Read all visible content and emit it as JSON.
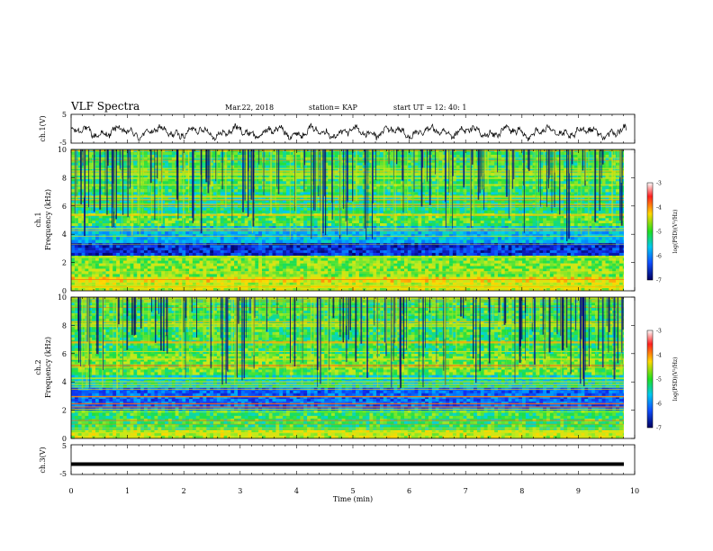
{
  "header": {
    "title": "VLF Spectra",
    "date": "Mar.22, 2018",
    "station": "station= KAP",
    "start_time": "start  UT =   12: 40: 1"
  },
  "chart_data": [
    {
      "type": "line",
      "panel": "ch1-waveform",
      "ylabel": "ch.1(V)",
      "ylim": [
        -5,
        5
      ],
      "y_tick_labels": [
        "5",
        "-5"
      ],
      "xlim": [
        0,
        10
      ],
      "series": [
        {
          "baseline": -1.2,
          "amplitude": 2.6
        }
      ]
    },
    {
      "type": "heatmap",
      "panel": "ch1-spectrogram",
      "ylabel_lines": [
        "ch.1",
        "Frequency (kHz)"
      ],
      "ylim": [
        0,
        10
      ],
      "y_tick_labels": [
        "0",
        "2",
        "4",
        "6",
        "8",
        "10"
      ],
      "xlim": [
        0,
        9.85
      ],
      "colorbar": {
        "range": [
          -7,
          -3
        ],
        "tick_labels": [
          "-3",
          "-4",
          "-5",
          "-6",
          "-7"
        ],
        "label": "log(PSD)(V²/Hz)"
      },
      "bands": [
        {
          "f": [
            0,
            0.6
          ],
          "level": -4.4
        },
        {
          "f": [
            0.6,
            1.0
          ],
          "level": -4.2
        },
        {
          "f": [
            1.0,
            2.5
          ],
          "level": -4.7
        },
        {
          "f": [
            2.5,
            3.4
          ],
          "level": -6.5
        },
        {
          "f": [
            3.4,
            4.6
          ],
          "level": -5.7
        },
        {
          "f": [
            4.6,
            5.5
          ],
          "level": -4.9
        },
        {
          "f": [
            5.5,
            7.0
          ],
          "level": -5.2
        },
        {
          "f": [
            7.0,
            10
          ],
          "level": -5.0
        }
      ]
    },
    {
      "type": "heatmap",
      "panel": "ch2-spectrogram",
      "ylabel_lines": [
        "ch.2",
        "Frequency (kHz)"
      ],
      "ylim": [
        0,
        10
      ],
      "y_tick_labels": [
        "0",
        "2",
        "4",
        "6",
        "8",
        "10"
      ],
      "xlim": [
        0,
        9.85
      ],
      "colorbar": {
        "range": [
          -7,
          -3
        ],
        "tick_labels": [
          "-3",
          "-4",
          "-5",
          "-6",
          "-7"
        ],
        "label": "log(PSD)(V²/Hz)"
      },
      "bands": [
        {
          "f": [
            0,
            0.6
          ],
          "level": -4.4
        },
        {
          "f": [
            0.6,
            2.0
          ],
          "level": -5.0
        },
        {
          "f": [
            2.0,
            3.6
          ],
          "level": -6.2
        },
        {
          "f": [
            3.6,
            4.5
          ],
          "level": -5.4
        },
        {
          "f": [
            4.5,
            6.0
          ],
          "level": -4.8
        },
        {
          "f": [
            6.0,
            10
          ],
          "level": -5.0
        }
      ]
    },
    {
      "type": "line",
      "panel": "ch3-waveform",
      "ylabel": "ch.3(V)",
      "ylim": [
        -5,
        5
      ],
      "y_tick_labels": [
        "5",
        "-5"
      ],
      "xlim": [
        0,
        10
      ],
      "xlabel": "Time (min)",
      "x_tick_labels": [
        "0",
        "1",
        "2",
        "3",
        "4",
        "5",
        "6",
        "7",
        "8",
        "9",
        "10"
      ],
      "series": [
        {
          "constant": -1.5
        }
      ]
    }
  ]
}
